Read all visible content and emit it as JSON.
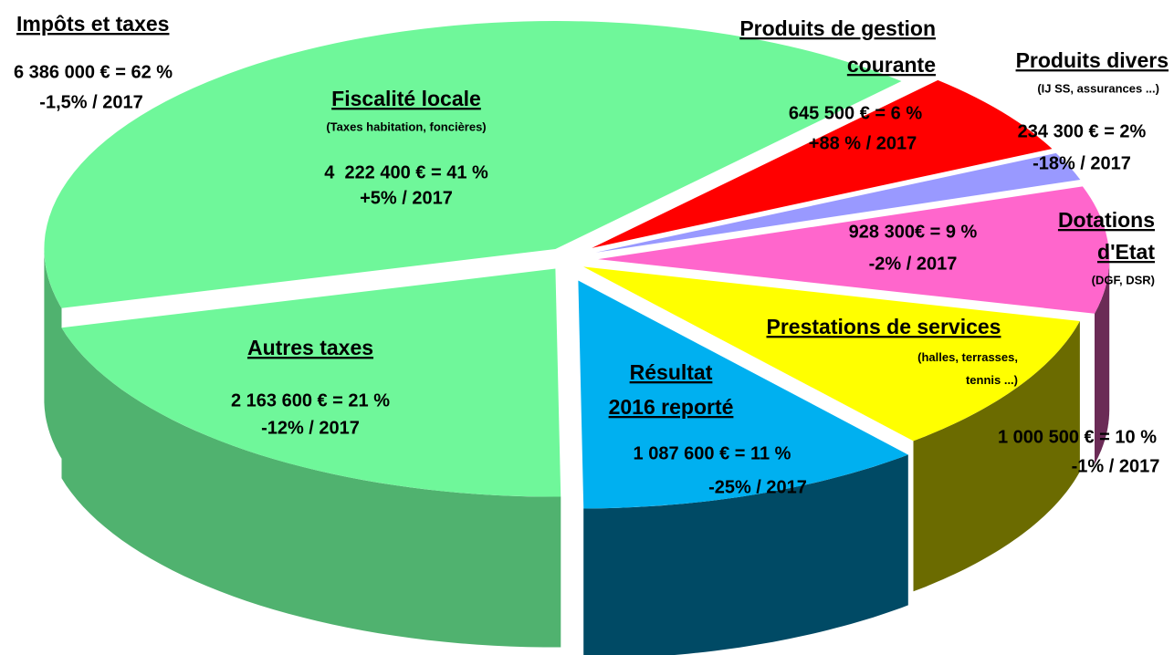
{
  "chart_data": {
    "type": "pie",
    "categories": [
      "Fiscalité locale",
      "Produits de gestion courante",
      "Produits divers",
      "Dotations d'Etat",
      "Prestations de services",
      "Résultat 2016 reporté",
      "Autres taxes"
    ],
    "subtitles": [
      "(Taxes habitation, foncières)",
      null,
      "(IJ SS, assurances ...)",
      "(DGF, DSR)",
      "(halles, terrasses, tennis ...)",
      null,
      null
    ],
    "values": [
      41,
      6,
      2,
      9,
      10,
      11,
      21
    ],
    "value_labels": [
      "4  222 400 € = 41 %",
      "645 500 € = 6 %",
      "234 300 € = 2%",
      "928 300€ = 9 %",
      "1 000 500 € = 10 %",
      "1 087 600 € = 11 %",
      "2 163 600 € = 21 %"
    ],
    "changes": [
      "+5% / 2017",
      "+88 % / 2017",
      "-18% / 2017",
      "-2% / 2017",
      "-1% / 2017",
      "-25% / 2017",
      "-12% / 2017"
    ],
    "colors": [
      "#6ff79a",
      "#ff0000",
      "#9999ff",
      "#ff66cc",
      "#ffff00",
      "#00b0f0",
      "#6ff79a"
    ],
    "group": {
      "name": "Impôts et taxes",
      "value_label": "6 386 000 € = 62 %",
      "change": "-1,5% / 2017"
    }
  }
}
